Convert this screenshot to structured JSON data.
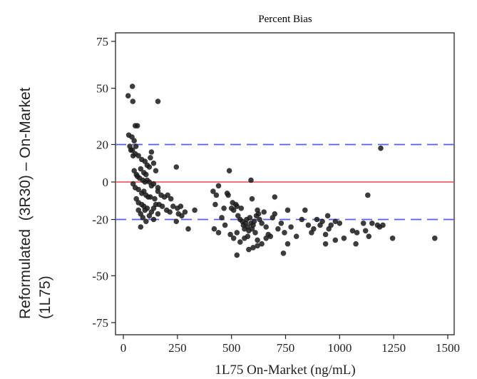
{
  "chart_data": {
    "type": "scatter",
    "title": "Percent Bias",
    "xlabel": "1L75 On-Market (ng/mL)",
    "ylabel_lines": [
      "Reformulated  (3R30) – On-Market",
      "(1L75)"
    ],
    "xlim": [
      0,
      1520
    ],
    "ylim": [
      -78,
      78
    ],
    "xticks": [
      0,
      250,
      500,
      750,
      1000,
      1250,
      1500
    ],
    "yticks": [
      75,
      50,
      20,
      0,
      -20,
      -50,
      -75
    ],
    "xtick_labels": [
      "0",
      "250",
      "500",
      "750",
      "1000",
      "1250",
      "1500"
    ],
    "ytick_labels": [
      "75",
      "50",
      "20",
      "0",
      "-20",
      "-50",
      "-75"
    ],
    "reference_lines": [
      {
        "y": 0,
        "color": "#e8474c",
        "style": "solid"
      },
      {
        "y": 20,
        "color": "#5a5cf0",
        "style": "dashed"
      },
      {
        "y": -20,
        "color": "#5a5cf0",
        "style": "dashed"
      }
    ],
    "marker_color": "#1a1a1a",
    "grid": false,
    "points": [
      [
        22,
        46
      ],
      [
        42,
        51
      ],
      [
        44,
        43
      ],
      [
        160,
        43
      ],
      [
        25,
        25
      ],
      [
        40,
        24
      ],
      [
        55,
        30
      ],
      [
        65,
        30
      ],
      [
        50,
        22
      ],
      [
        58,
        19
      ],
      [
        30,
        19
      ],
      [
        35,
        17
      ],
      [
        42,
        17
      ],
      [
        45,
        14
      ],
      [
        55,
        15
      ],
      [
        70,
        14
      ],
      [
        130,
        16
      ],
      [
        125,
        13
      ],
      [
        85,
        12
      ],
      [
        100,
        11
      ],
      [
        110,
        9
      ],
      [
        120,
        8
      ],
      [
        140,
        10
      ],
      [
        150,
        6
      ],
      [
        80,
        7
      ],
      [
        95,
        5
      ],
      [
        105,
        4
      ],
      [
        50,
        6
      ],
      [
        60,
        4
      ],
      [
        65,
        3
      ],
      [
        75,
        2
      ],
      [
        90,
        1
      ],
      [
        100,
        0
      ],
      [
        110,
        1
      ],
      [
        120,
        0
      ],
      [
        130,
        -2
      ],
      [
        140,
        -1
      ],
      [
        160,
        -3
      ],
      [
        45,
        -1
      ],
      [
        55,
        -3
      ],
      [
        70,
        -4
      ],
      [
        85,
        -6
      ],
      [
        95,
        -5
      ],
      [
        105,
        -7
      ],
      [
        115,
        -8
      ],
      [
        125,
        -8
      ],
      [
        145,
        -9
      ],
      [
        160,
        -5
      ],
      [
        175,
        -7
      ],
      [
        190,
        -8
      ],
      [
        205,
        -7
      ],
      [
        220,
        -9
      ],
      [
        60,
        -9
      ],
      [
        70,
        -11
      ],
      [
        85,
        -12
      ],
      [
        95,
        -13
      ],
      [
        100,
        -15
      ],
      [
        110,
        -14
      ],
      [
        130,
        -16
      ],
      [
        140,
        -14
      ],
      [
        150,
        -12
      ],
      [
        165,
        -12
      ],
      [
        180,
        -13
      ],
      [
        200,
        -15
      ],
      [
        215,
        -16
      ],
      [
        230,
        -13
      ],
      [
        70,
        -15
      ],
      [
        80,
        -17
      ],
      [
        90,
        -19
      ],
      [
        105,
        -21
      ],
      [
        120,
        -18
      ],
      [
        140,
        -20
      ],
      [
        160,
        -17
      ],
      [
        80,
        -24
      ],
      [
        245,
        8
      ],
      [
        250,
        -14
      ],
      [
        255,
        -17
      ],
      [
        265,
        -13
      ],
      [
        245,
        -21
      ],
      [
        270,
        -18
      ],
      [
        285,
        -16
      ],
      [
        300,
        -25
      ],
      [
        330,
        -15
      ],
      [
        415,
        -5
      ],
      [
        425,
        -12
      ],
      [
        430,
        -7
      ],
      [
        440,
        -2
      ],
      [
        455,
        -19
      ],
      [
        465,
        -14
      ],
      [
        480,
        -6
      ],
      [
        485,
        -7
      ],
      [
        490,
        6
      ],
      [
        500,
        -14
      ],
      [
        505,
        -11
      ],
      [
        510,
        -15
      ],
      [
        520,
        -12
      ],
      [
        525,
        -13
      ],
      [
        530,
        -18
      ],
      [
        540,
        -20
      ],
      [
        545,
        -14
      ],
      [
        550,
        -21
      ],
      [
        555,
        -23
      ],
      [
        560,
        -25
      ],
      [
        565,
        -22
      ],
      [
        570,
        -20
      ],
      [
        575,
        -24
      ],
      [
        580,
        -26
      ],
      [
        585,
        -19
      ],
      [
        590,
        -22
      ],
      [
        595,
        -25
      ],
      [
        600,
        -23
      ],
      [
        605,
        -21
      ],
      [
        610,
        -27
      ],
      [
        615,
        -18
      ],
      [
        620,
        -15
      ],
      [
        625,
        -17
      ],
      [
        630,
        -20
      ],
      [
        640,
        -22
      ],
      [
        650,
        -16
      ],
      [
        660,
        -24
      ],
      [
        670,
        -28
      ],
      [
        690,
        -19
      ],
      [
        700,
        -17
      ],
      [
        715,
        -25
      ],
      [
        730,
        -22
      ],
      [
        745,
        -27
      ],
      [
        760,
        -15
      ],
      [
        775,
        -24
      ],
      [
        800,
        -29
      ],
      [
        825,
        -20
      ],
      [
        840,
        -15
      ],
      [
        855,
        -23
      ],
      [
        870,
        -27
      ],
      [
        880,
        -25
      ],
      [
        895,
        -20
      ],
      [
        910,
        -23
      ],
      [
        920,
        -21
      ],
      [
        935,
        -28
      ],
      [
        945,
        -18
      ],
      [
        950,
        -25
      ],
      [
        960,
        -23
      ],
      [
        980,
        -21
      ],
      [
        1000,
        -22
      ],
      [
        590,
        1
      ],
      [
        595,
        -9
      ],
      [
        700,
        -8
      ],
      [
        420,
        -25
      ],
      [
        440,
        -27
      ],
      [
        470,
        -23
      ],
      [
        495,
        -28
      ],
      [
        510,
        -30
      ],
      [
        525,
        -27
      ],
      [
        540,
        -32
      ],
      [
        560,
        -30
      ],
      [
        575,
        -29
      ],
      [
        600,
        -35
      ],
      [
        620,
        -31
      ],
      [
        640,
        -33
      ],
      [
        660,
        -30
      ],
      [
        680,
        -29
      ],
      [
        525,
        -39
      ],
      [
        580,
        -36
      ],
      [
        620,
        -34
      ],
      [
        740,
        -38
      ],
      [
        760,
        -33
      ],
      [
        935,
        -33
      ],
      [
        980,
        -31
      ],
      [
        1020,
        -30
      ],
      [
        1060,
        -26
      ],
      [
        1080,
        -27
      ],
      [
        1110,
        -22
      ],
      [
        1120,
        -26
      ],
      [
        1135,
        -29
      ],
      [
        1150,
        -22
      ],
      [
        1175,
        -23
      ],
      [
        1185,
        -24
      ],
      [
        1200,
        -23
      ],
      [
        1130,
        -7
      ],
      [
        1190,
        18
      ],
      [
        1245,
        -30
      ],
      [
        1075,
        -33
      ],
      [
        1440,
        -30
      ]
    ]
  }
}
